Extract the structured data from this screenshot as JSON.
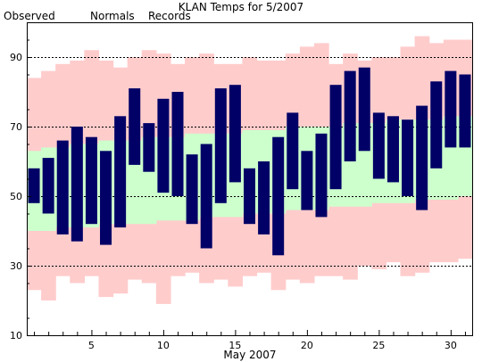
{
  "chart_data": {
    "type": "bar",
    "title": "KLAN Temps for 5/2007",
    "xlabel": "May 2007",
    "ylabel": "",
    "xlim": [
      0.5,
      31.5
    ],
    "ylim": [
      10,
      100
    ],
    "yticks": [
      10,
      30,
      50,
      70,
      90
    ],
    "xticks": [
      5,
      10,
      15,
      20,
      25,
      30
    ],
    "gridlines_y": [
      30,
      50,
      70,
      90
    ],
    "legend": [
      {
        "name": "Observed",
        "color": "#000066"
      },
      {
        "name": "Normals",
        "color": "#006600"
      },
      {
        "name": "Records",
        "color": "#e9a8c4"
      }
    ],
    "days": [
      1,
      2,
      3,
      4,
      5,
      6,
      7,
      8,
      9,
      10,
      11,
      12,
      13,
      14,
      15,
      16,
      17,
      18,
      19,
      20,
      21,
      22,
      23,
      24,
      25,
      26,
      27,
      28,
      29,
      30,
      31
    ],
    "series": [
      {
        "name": "Records",
        "color": "#ffcccc",
        "high": [
          84,
          86,
          88,
          89,
          92,
          89,
          87,
          90,
          92,
          91,
          88,
          90,
          91,
          88,
          88,
          90,
          89,
          89,
          91,
          93,
          94,
          88,
          91,
          89,
          90,
          90,
          93,
          96,
          94,
          95,
          95
        ],
        "low": [
          23,
          20,
          27,
          25,
          27,
          21,
          22,
          26,
          25,
          19,
          27,
          28,
          25,
          26,
          24,
          27,
          28,
          23,
          26,
          25,
          27,
          27,
          26,
          30,
          29,
          31,
          27,
          28,
          31,
          31,
          32
        ]
      },
      {
        "name": "Normals",
        "color": "#ccffcc",
        "high": [
          63,
          64,
          64,
          65,
          65,
          66,
          66,
          66,
          67,
          67,
          67,
          68,
          68,
          68,
          68,
          69,
          69,
          69,
          70,
          70,
          70,
          70,
          71,
          71,
          71,
          72,
          72,
          72,
          72,
          73,
          73
        ],
        "low": [
          40,
          40,
          41,
          41,
          41,
          42,
          42,
          42,
          42,
          43,
          43,
          43,
          44,
          44,
          44,
          45,
          45,
          45,
          46,
          46,
          46,
          47,
          47,
          47,
          48,
          48,
          48,
          49,
          49,
          49,
          50
        ]
      },
      {
        "name": "Observed",
        "color": "#000066",
        "high": [
          58,
          61,
          66,
          70,
          67,
          63,
          73,
          81,
          71,
          78,
          80,
          62,
          65,
          81,
          82,
          58,
          60,
          67,
          74,
          63,
          68,
          82,
          86,
          87,
          74,
          73,
          72,
          76,
          83,
          86,
          85
        ],
        "low": [
          48,
          45,
          39,
          37,
          42,
          36,
          41,
          59,
          57,
          51,
          50,
          42,
          35,
          48,
          54,
          42,
          39,
          33,
          52,
          46,
          44,
          52,
          60,
          63,
          55,
          54,
          50,
          46,
          58,
          64,
          64
        ]
      }
    ]
  }
}
